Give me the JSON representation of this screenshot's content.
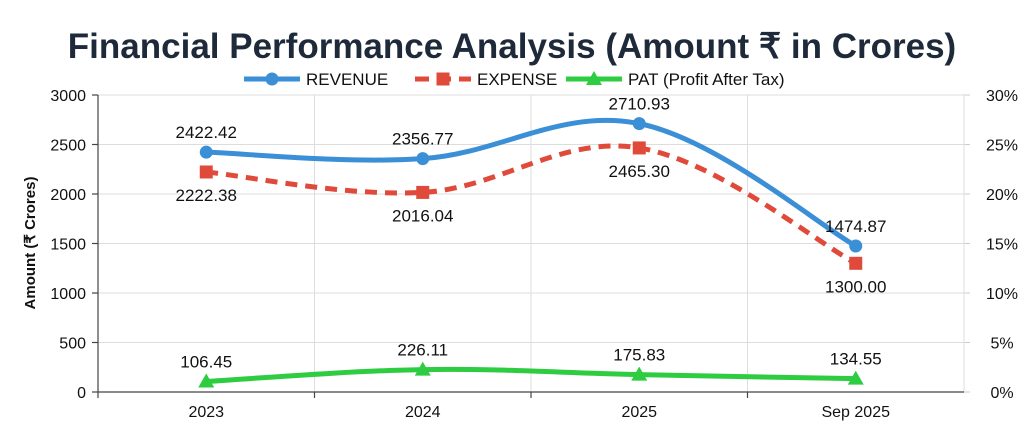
{
  "chart_data": {
    "type": "line",
    "title": "Financial Performance Analysis (Amount ₹ in Crores)",
    "xlabel": "",
    "ylabel": "Amount (₹ Crores)",
    "categories": [
      "2023",
      "2024",
      "2025",
      "Sep 2025"
    ],
    "ylim": [
      0,
      3000
    ],
    "yticks": [
      "0",
      "500",
      "1000",
      "1500",
      "2000",
      "2500",
      "3000"
    ],
    "ytick_values": [
      0,
      500,
      1000,
      1500,
      2000,
      2500,
      3000
    ],
    "y2lim": [
      0,
      30
    ],
    "y2ticks": [
      "0%",
      "5%",
      "10%",
      "15%",
      "20%",
      "25%",
      "30%"
    ],
    "grid": true,
    "legend_position": "top-center",
    "series": [
      {
        "name": "REVENUE",
        "values": [
          2422.42,
          2356.77,
          2710.93,
          1474.87
        ],
        "labels": [
          "2422.42",
          "2356.77",
          "2710.93",
          "1474.87"
        ],
        "label_position": "above",
        "color": "#3a8fd6",
        "marker": "circle",
        "dash": "solid"
      },
      {
        "name": "EXPENSE",
        "values": [
          2222.38,
          2016.04,
          2465.3,
          1300.0
        ],
        "labels": [
          "2222.38",
          "2016.04",
          "2465.30",
          "1300.00"
        ],
        "label_position": "below",
        "color": "#e04a3a",
        "marker": "square",
        "dash": "dashed"
      },
      {
        "name": "PAT (Profit After Tax)",
        "values": [
          106.45,
          226.11,
          175.83,
          134.55
        ],
        "labels": [
          "106.45",
          "226.11",
          "175.83",
          "134.55"
        ],
        "label_position": "above",
        "color": "#2ecc40",
        "marker": "triangle",
        "dash": "solid"
      }
    ]
  }
}
